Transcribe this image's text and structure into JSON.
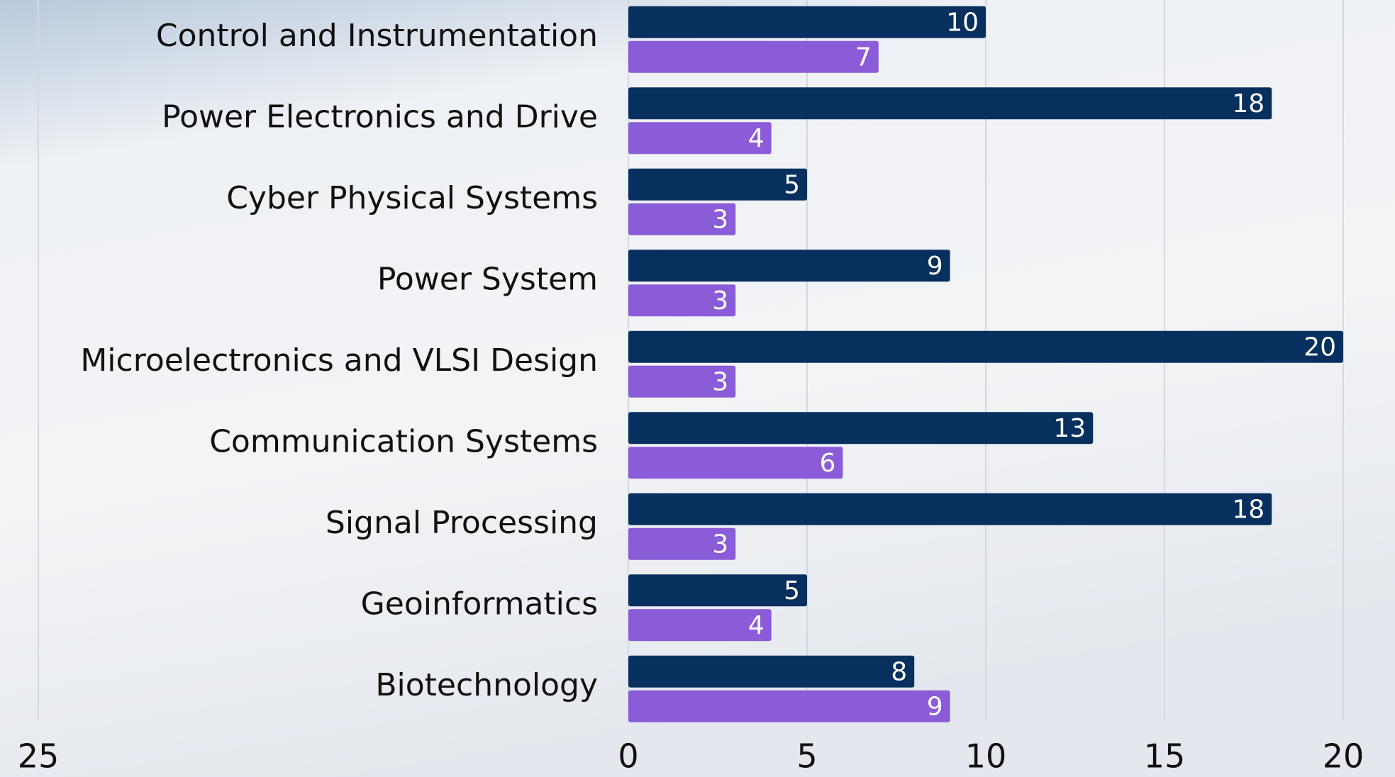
{
  "chart_data": {
    "type": "bar",
    "orientation": "horizontal",
    "categories": [
      "Control and Instrumentation",
      "Power Electronics and Drive",
      "Cyber Physical Systems",
      "Power System",
      "Microelectronics and VLSI Design",
      "Communication Systems",
      "Signal Processing",
      "Geoinformatics",
      "Biotechnology"
    ],
    "series": [
      {
        "color": "#08305e",
        "values": [
          10,
          18,
          5,
          9,
          20,
          13,
          18,
          5,
          8
        ]
      },
      {
        "color": "#8a5cd8",
        "values": [
          7,
          4,
          3,
          3,
          3,
          6,
          3,
          4,
          9
        ]
      }
    ],
    "xlim": [
      0,
      20
    ],
    "xticks": [
      0,
      5,
      10,
      15,
      20
    ],
    "grid": true,
    "annotations": [
      "25"
    ]
  }
}
